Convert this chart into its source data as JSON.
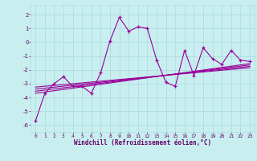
{
  "xlabel": "Windchill (Refroidissement éolien,°C)",
  "bg_color": "#c8eef0",
  "grid_color": "#b0dde0",
  "line_color": "#990099",
  "xlim": [
    -0.5,
    23.5
  ],
  "ylim": [
    -6.5,
    2.7
  ],
  "yticks": [
    -6,
    -5,
    -4,
    -3,
    -2,
    -1,
    0,
    1,
    2
  ],
  "xticks": [
    0,
    1,
    2,
    3,
    4,
    5,
    6,
    7,
    8,
    9,
    10,
    11,
    12,
    13,
    14,
    15,
    16,
    17,
    18,
    19,
    20,
    21,
    22,
    23
  ],
  "series": [
    [
      0,
      -5.7
    ],
    [
      1,
      -3.7
    ],
    [
      2,
      -3.0
    ],
    [
      3,
      -2.5
    ],
    [
      4,
      -3.2
    ],
    [
      5,
      -3.2
    ],
    [
      6,
      -3.7
    ],
    [
      7,
      -2.2
    ],
    [
      8,
      0.1
    ],
    [
      9,
      1.8
    ],
    [
      10,
      0.8
    ],
    [
      11,
      1.1
    ],
    [
      12,
      1.0
    ],
    [
      13,
      -1.3
    ],
    [
      14,
      -2.9
    ],
    [
      15,
      -3.2
    ],
    [
      16,
      -0.6
    ],
    [
      17,
      -2.4
    ],
    [
      18,
      -0.4
    ],
    [
      19,
      -1.2
    ],
    [
      20,
      -1.6
    ],
    [
      21,
      -0.6
    ],
    [
      22,
      -1.3
    ],
    [
      23,
      -1.4
    ]
  ],
  "regression_lines": [
    {
      "x0": 0,
      "y0": -3.7,
      "x1": 23,
      "y1": -1.55
    },
    {
      "x0": 0,
      "y0": -3.55,
      "x1": 23,
      "y1": -1.65
    },
    {
      "x0": 0,
      "y0": -3.4,
      "x1": 23,
      "y1": -1.75
    },
    {
      "x0": 0,
      "y0": -3.25,
      "x1": 23,
      "y1": -1.85
    }
  ]
}
